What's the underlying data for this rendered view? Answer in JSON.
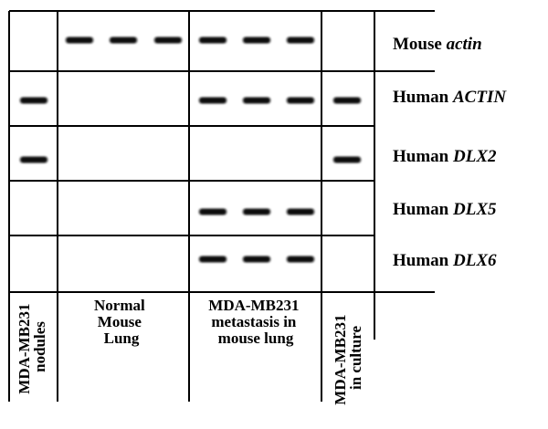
{
  "rows": [
    {
      "prefix": "Mouse ",
      "gene": "actin"
    },
    {
      "prefix": "Human ",
      "gene": "ACTIN"
    },
    {
      "prefix": "Human ",
      "gene": "DLX2"
    },
    {
      "prefix": "Human ",
      "gene": "DLX5"
    },
    {
      "prefix": "Human ",
      "gene": "DLX6"
    }
  ],
  "columns": [
    {
      "lines": [
        "MDA-MB231",
        "nodules"
      ]
    },
    {
      "lines": [
        "Normal",
        "Mouse",
        "Lung"
      ]
    },
    {
      "lines": [
        "MDA-MB231",
        "metastasis in",
        "mouse lung"
      ]
    },
    {
      "lines": [
        "MDA-MB231",
        "in culture"
      ]
    }
  ],
  "lanes_per_column": [
    1,
    3,
    3,
    1
  ],
  "band_presence": [
    [
      0,
      1,
      1,
      1,
      1,
      1,
      1,
      0
    ],
    [
      1,
      0,
      0,
      0,
      1,
      1,
      1,
      1
    ],
    [
      1,
      0,
      0,
      0,
      0,
      0,
      0,
      1
    ],
    [
      0,
      0,
      0,
      0,
      1,
      1,
      1,
      0
    ],
    [
      0,
      0,
      0,
      0,
      1,
      1,
      1,
      0
    ]
  ],
  "colors": {
    "band": "#111111",
    "grid": "#000000",
    "background": "#ffffff"
  }
}
